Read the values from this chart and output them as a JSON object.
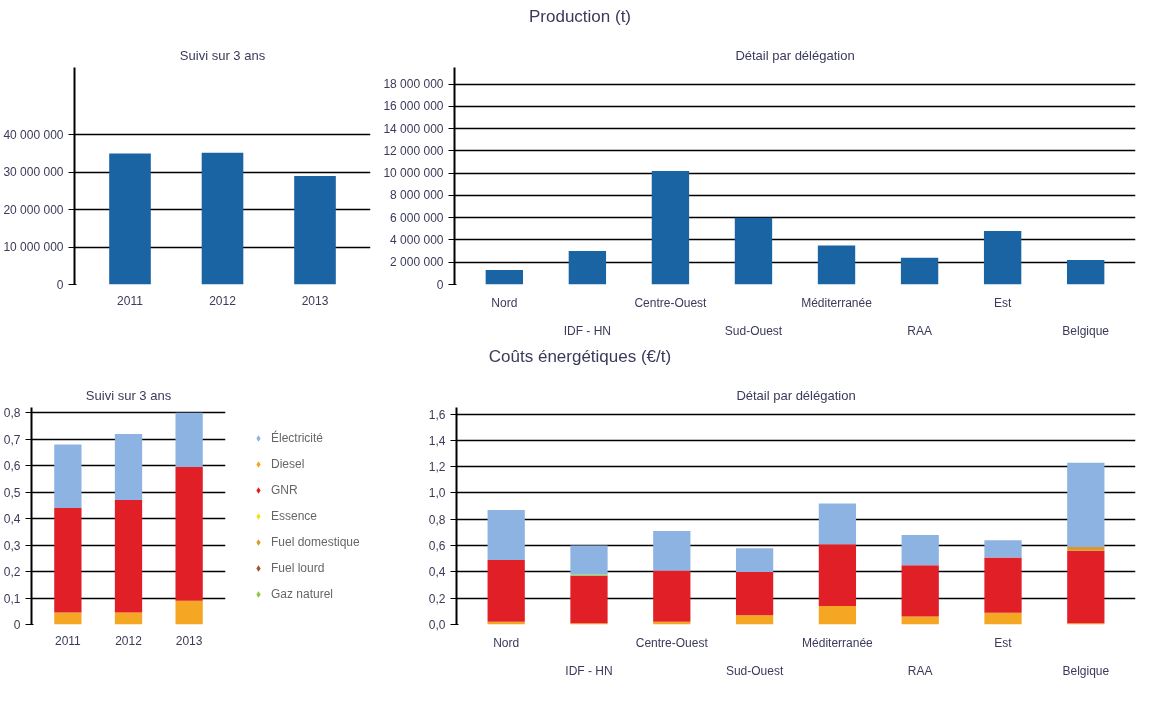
{
  "chart_data": [
    {
      "type": "bar",
      "title": "Suivi sur 3 ans",
      "annotations": [
        "Production (t)"
      ],
      "categories": [
        "2011",
        "2012",
        "2013"
      ],
      "values": [
        35000000,
        35200000,
        29000000
      ],
      "color": "#1b64a4",
      "ylim": [
        0,
        58000000
      ],
      "yticks": [
        0,
        {
          "value": 10000000,
          "label": "10 000 000"
        },
        {
          "value": 20000000,
          "label": "20 000 000"
        },
        {
          "value": 30000000,
          "label": "30 000 000"
        },
        {
          "value": 40000000,
          "label": "40 000 000"
        }
      ],
      "grid": "y",
      "legend": false
    },
    {
      "type": "bar",
      "title": "Détail par délégation",
      "categories": [
        "Nord",
        "IDF - HN",
        "Centre-Ouest",
        "Sud-Ouest",
        "Méditerranée",
        "RAA",
        "Est",
        "Belgique"
      ],
      "values": [
        1300000,
        3000000,
        10200000,
        6000000,
        3500000,
        2400000,
        4800000,
        2200000
      ],
      "color": "#1b64a4",
      "ylim": [
        0,
        19500000
      ],
      "yticks": [
        0,
        {
          "value": 2000000,
          "label": "2 000 000"
        },
        {
          "value": 4000000,
          "label": "4 000 000"
        },
        {
          "value": 6000000,
          "label": "6 000 000"
        },
        {
          "value": 8000000,
          "label": "8 000 000"
        },
        {
          "value": 10000000,
          "label": "10 000 000"
        },
        {
          "value": 12000000,
          "label": "12 000 000"
        },
        {
          "value": 14000000,
          "label": "14 000 000"
        },
        {
          "value": 16000000,
          "label": "16 000 000"
        },
        {
          "value": 18000000,
          "label": "18 000 000"
        }
      ],
      "grid": "y",
      "legend": false
    },
    {
      "type": "bar",
      "title": "Suivi sur 3 ans",
      "annotations": [
        "Coûts énergétiques (€/t)"
      ],
      "stacked": true,
      "categories": [
        "2011",
        "2012",
        "2013"
      ],
      "series": [
        {
          "name": "Diesel",
          "color": "#f5a623",
          "values": [
            0.045,
            0.045,
            0.09
          ]
        },
        {
          "name": "GNR",
          "color": "#e01f26",
          "values": [
            0.395,
            0.425,
            0.505
          ]
        },
        {
          "name": "Essence",
          "color": "#f0e020",
          "values": [
            0,
            0,
            0
          ]
        },
        {
          "name": "Fuel domestique",
          "color": "#d99a2b",
          "values": [
            0,
            0,
            0
          ]
        },
        {
          "name": "Fuel lourd",
          "color": "#a0522d",
          "values": [
            0,
            0,
            0
          ]
        },
        {
          "name": "Gaz naturel",
          "color": "#8dc63f",
          "values": [
            0,
            0,
            0
          ]
        },
        {
          "name": "Électricité",
          "color": "#8db3e2",
          "values": [
            0.24,
            0.25,
            0.205
          ]
        }
      ],
      "marker": "diamond",
      "legend": "right",
      "ylim": [
        0,
        0.82
      ],
      "yticks": [
        0,
        {
          "value": 0.1,
          "label": "0,1"
        },
        {
          "value": 0.2,
          "label": "0,2"
        },
        {
          "value": 0.3,
          "label": "0,3"
        },
        {
          "value": 0.4,
          "label": "0,4"
        },
        {
          "value": 0.5,
          "label": "0,5"
        },
        {
          "value": 0.6,
          "label": "0,6"
        },
        {
          "value": 0.7,
          "label": "0,7"
        },
        {
          "value": 0.8,
          "label": "0,8"
        }
      ],
      "grid": "y"
    },
    {
      "type": "bar",
      "title": "Détail par délégation",
      "stacked": true,
      "categories": [
        "Nord",
        "IDF - HN",
        "Centre-Ouest",
        "Sud-Ouest",
        "Méditerranée",
        "RAA",
        "Est",
        "Belgique"
      ],
      "series": [
        {
          "color": "#f5a623",
          "values": [
            0.02,
            0.01,
            0.02,
            0.07,
            0.14,
            0.06,
            0.09,
            0.01
          ]
        },
        {
          "color": "#e01f26",
          "values": [
            0.47,
            0.36,
            0.39,
            0.33,
            0.47,
            0.39,
            0.42,
            0.55
          ]
        },
        {
          "color": "#d99a2b",
          "values": [
            0,
            0,
            0,
            0,
            0,
            0,
            0,
            0.03
          ]
        },
        {
          "color": "#8dc63f",
          "values": [
            0,
            0.01,
            0,
            0,
            0,
            0,
            0,
            0
          ]
        },
        {
          "color": "#8db3e2",
          "values": [
            0.38,
            0.22,
            0.3,
            0.18,
            0.31,
            0.23,
            0.13,
            0.64
          ]
        }
      ],
      "ylim": [
        0,
        1.65
      ],
      "yticks": [
        {
          "value": 0,
          "label": "0,0"
        },
        {
          "value": 0.2,
          "label": "0,2"
        },
        {
          "value": 0.4,
          "label": "0,4"
        },
        {
          "value": 0.6,
          "label": "0,6"
        },
        {
          "value": 0.8,
          "label": "0,8"
        },
        {
          "value": 1.0,
          "label": "1,0"
        },
        {
          "value": 1.2,
          "label": "1,2"
        },
        {
          "value": 1.4,
          "label": "1,4"
        },
        {
          "value": 1.6,
          "label": "1,6"
        }
      ],
      "grid": "y",
      "legend": false
    }
  ]
}
